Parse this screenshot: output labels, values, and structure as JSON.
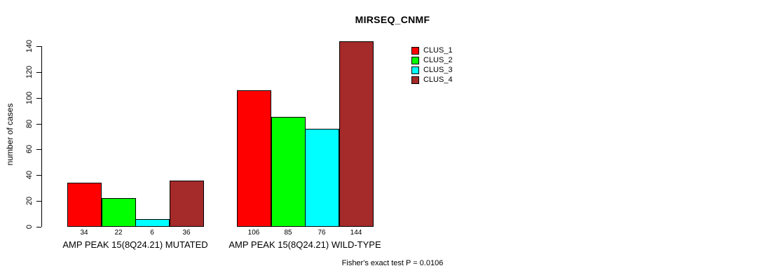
{
  "title": "MIRSEQ_CNMF",
  "ylabel": "number of cases",
  "footer": "Fisher's exact test P = 0.0106",
  "colors": {
    "clus_1": "#FF0000",
    "clus_2": "#00FF00",
    "clus_3": "#00FFFF",
    "clus_4": "#A52A2A",
    "axis": "#000000",
    "background": "#FFFFFF"
  },
  "chart_data": {
    "type": "bar",
    "title": "MIRSEQ_CNMF",
    "xlabel": "",
    "ylabel": "number of cases",
    "ylim": [
      0,
      140
    ],
    "yticks": [
      0,
      20,
      40,
      60,
      80,
      100,
      120,
      140
    ],
    "grid": false,
    "legend_position": "top-right",
    "categories": [
      "AMP PEAK 15(8Q24.21) MUTATED",
      "AMP PEAK 15(8Q24.21) WILD-TYPE"
    ],
    "series": [
      {
        "name": "CLUS_1",
        "color": "#FF0000",
        "values": [
          34,
          106
        ]
      },
      {
        "name": "CLUS_2",
        "color": "#00FF00",
        "values": [
          22,
          85
        ]
      },
      {
        "name": "CLUS_3",
        "color": "#00FFFF",
        "values": [
          6,
          76
        ]
      },
      {
        "name": "CLUS_4",
        "color": "#A52A2A",
        "values": [
          36,
          144
        ]
      }
    ],
    "bar_value_labels": [
      [
        34,
        22,
        6,
        36
      ],
      [
        106,
        85,
        76,
        144
      ]
    ],
    "annotation": "Fisher's exact test P = 0.0106"
  }
}
